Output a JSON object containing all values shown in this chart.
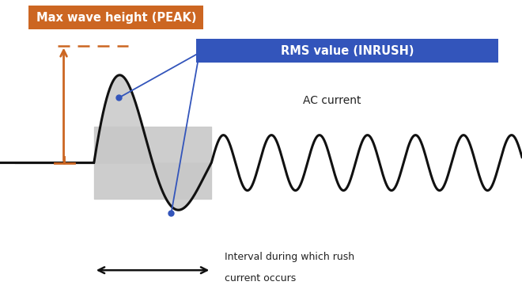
{
  "bg_color": "#ffffff",
  "peak_box_color": "#cc6622",
  "peak_box_text": "Max wave height (PEAK)",
  "peak_box_text_color": "#ffffff",
  "rms_box_color": "#3355bb",
  "rms_box_text": "RMS value (INRUSH)",
  "rms_box_text_color": "#ffffff",
  "ac_current_text": "AC current",
  "interval_text_line1": "Interval during which rush",
  "interval_text_line2": "current occurs",
  "arrow_color": "#cc6622",
  "interval_arrow_color": "#111111",
  "wave_color": "#111111",
  "fill_color": "#c8c8c8",
  "line_color": "#3355bb",
  "dot_color": "#3355bb",
  "xlim": [
    0,
    10
  ],
  "ylim": [
    -4.0,
    5.0
  ]
}
